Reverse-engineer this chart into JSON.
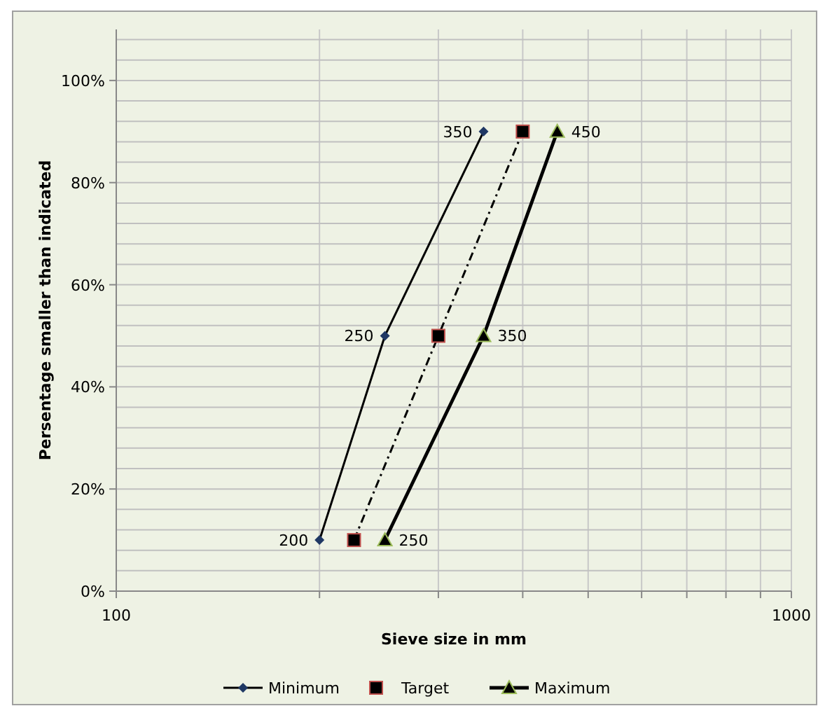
{
  "chart_data": {
    "type": "line",
    "xlabel": "Sieve size in mm",
    "ylabel": "Persentage smaller than indicated",
    "log": "x",
    "grid": true,
    "legend": "bottom",
    "xlim": [
      100,
      1000
    ],
    "xticks": [
      100,
      {
        "value": 200,
        "label": null
      },
      {
        "value": 300,
        "label": null
      },
      {
        "value": 400,
        "label": null
      },
      {
        "value": 500,
        "label": null
      },
      {
        "value": 600,
        "label": null
      },
      {
        "value": 700,
        "label": null
      },
      {
        "value": 800,
        "label": null
      },
      {
        "value": 900,
        "label": null
      },
      1000
    ],
    "ylim": [
      0,
      110
    ],
    "yticks": [
      {
        "value": 0,
        "label": "0%"
      },
      {
        "value": 4,
        "label": null
      },
      {
        "value": 8,
        "label": null
      },
      {
        "value": 12,
        "label": null
      },
      {
        "value": 16,
        "label": null
      },
      {
        "value": 20,
        "label": "20%"
      },
      {
        "value": 24,
        "label": null
      },
      {
        "value": 28,
        "label": null
      },
      {
        "value": 32,
        "label": null
      },
      {
        "value": 36,
        "label": null
      },
      {
        "value": 40,
        "label": "40%"
      },
      {
        "value": 44,
        "label": null
      },
      {
        "value": 48,
        "label": null
      },
      {
        "value": 52,
        "label": null
      },
      {
        "value": 56,
        "label": null
      },
      {
        "value": 60,
        "label": "60%"
      },
      {
        "value": 64,
        "label": null
      },
      {
        "value": 68,
        "label": null
      },
      {
        "value": 72,
        "label": null
      },
      {
        "value": 76,
        "label": null
      },
      {
        "value": 80,
        "label": "80%"
      },
      {
        "value": 84,
        "label": null
      },
      {
        "value": 88,
        "label": null
      },
      {
        "value": 92,
        "label": null
      },
      {
        "value": 96,
        "label": null
      },
      {
        "value": 100,
        "label": "100%"
      },
      {
        "value": 104,
        "label": null
      },
      {
        "value": 108,
        "label": null
      }
    ],
    "series": [
      {
        "name": "Minimum",
        "color": "#1f3864",
        "marker": "diamond",
        "line_style": "solid",
        "x": [
          200,
          250,
          350
        ],
        "values": [
          10,
          50,
          90
        ]
      },
      {
        "name": "Target",
        "color": "#000000",
        "marker": "square",
        "line_style": "dashed",
        "x": [
          225,
          300,
          400
        ],
        "values": [
          10,
          50,
          90
        ]
      },
      {
        "name": "Maximum",
        "color": "#000000",
        "marker": "triangle",
        "line_style": "solid",
        "x": [
          250,
          350,
          450
        ],
        "values": [
          10,
          50,
          90
        ]
      }
    ],
    "annotations": [
      {
        "text": "200",
        "x": 200,
        "y": 10
      },
      {
        "text": "250",
        "x": 250,
        "y": 50
      },
      {
        "text": "350",
        "x": 350,
        "y": 90
      },
      {
        "text": "250",
        "x": 250,
        "y": 10
      },
      {
        "text": "350",
        "x": 350,
        "y": 50
      },
      {
        "text": "450",
        "x": 450,
        "y": 90
      }
    ]
  }
}
